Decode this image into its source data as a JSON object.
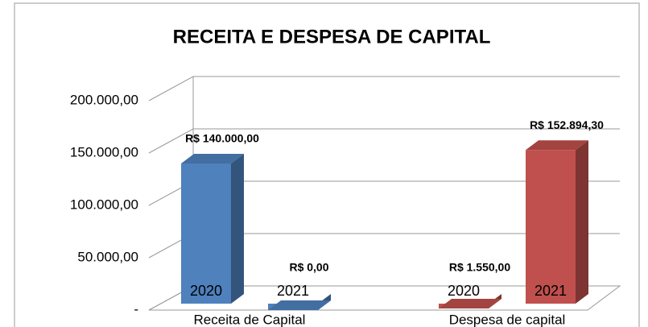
{
  "chart_data": {
    "type": "bar3d",
    "title": "RECEITA E DESPESA DE CAPITAL",
    "categories": [
      "Receita de Capital",
      "Despesa de capital"
    ],
    "colors": [
      "#4f81bd",
      "#c0504d"
    ],
    "series": [
      {
        "name": "2020",
        "values": [
          140000,
          1550
        ],
        "value_labels": [
          "R$ 140.000,00",
          "R$ 1.550,00"
        ]
      },
      {
        "name": "2021",
        "values": [
          0,
          152894.3
        ],
        "value_labels": [
          "R$ 0,00",
          "R$ 152.894,30"
        ]
      }
    ],
    "ylim": [
      0,
      200000
    ],
    "yticks": [
      {
        "value": 0,
        "label": "-"
      },
      {
        "value": 50000,
        "label": "50.000,00"
      },
      {
        "value": 100000,
        "label": "100.000,00"
      },
      {
        "value": 150000,
        "label": "150.000,00"
      },
      {
        "value": 200000,
        "label": "200.000,00"
      }
    ],
    "grid": true
  }
}
